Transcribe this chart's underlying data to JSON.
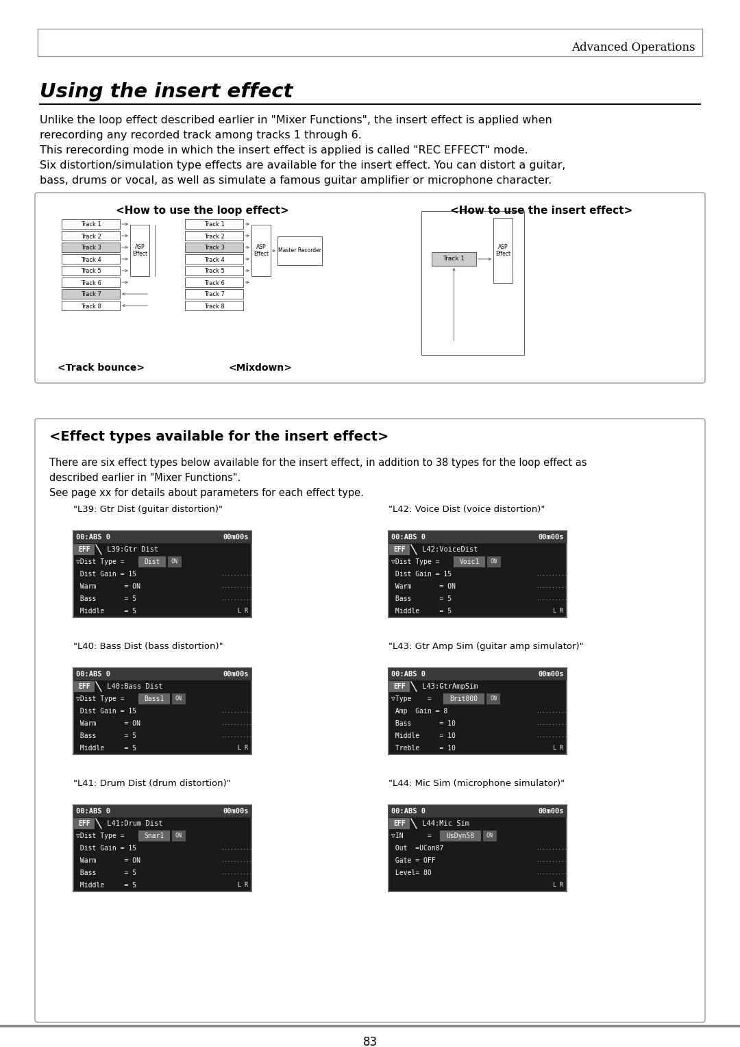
{
  "page_title": "Advanced Operations",
  "section_title": "Using the insert effect",
  "body_text_1a": "Unlike the loop effect described earlier in \"Mixer Functions\", the insert effect is applied when",
  "body_text_1b": "rerecording any recorded track among tracks 1 through 6.",
  "body_text_1c": "This rerecording mode in which the insert effect is applied is called \"REC EFFECT\" mode.",
  "body_text_1d": "Six distortion/simulation type effects are available for the insert effect. You can distort a guitar,",
  "body_text_1e": "bass, drums or vocal, as well as simulate a famous guitar amplifier or microphone character.",
  "diagram_title_loop": "<How to use the loop effect>",
  "diagram_title_insert": "<How to use the insert effect>",
  "tracks": [
    "Track 1",
    "Track 2",
    "Track 3",
    "Track 4",
    "Track 5",
    "Track 6",
    "Track 7",
    "Track 8"
  ],
  "label_track_bounce": "<Track bounce>",
  "label_mixdown": "<Mixdown>",
  "section2_title": "<Effect types available for the insert effect>",
  "section2_body_1": "There are six effect types below available for the insert effect, in addition to 38 types for the loop effect as",
  "section2_body_2": "described earlier in \"Mixer Functions\".",
  "section2_body_3": "See page xx for details about parameters for each effect type.",
  "effect_labels": [
    "\"L39: Gtr Dist (guitar distortion)\"",
    "\"L42: Voice Dist (voice distortion)\"",
    "\"L40: Bass Dist (bass distortion)\"",
    "\"L43: Gtr Amp Sim (guitar amp simulator)\"",
    "\"L41: Drum Dist (drum distortion)\"",
    "\"L44: Mic Sim (microphone simulator)\""
  ],
  "page_number": "83",
  "background_color": "#ffffff",
  "header_border_color": "#aaaaaa",
  "box_border_color": "#888888"
}
